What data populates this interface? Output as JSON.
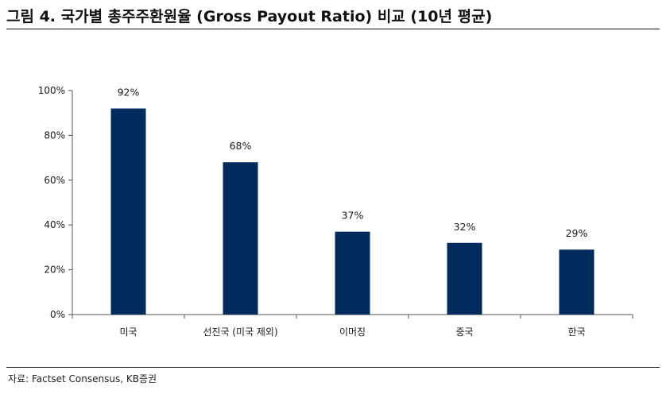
{
  "header": {
    "title": "그림 4. 국가별 총주주환원율 (Gross Payout Ratio) 비교 (10년 평균)"
  },
  "footer": {
    "source": "자료: Factset Consensus, KB증권"
  },
  "colors": {
    "bar": "#002b5c",
    "axis": "#555555"
  },
  "chart_data": {
    "type": "bar",
    "categories": [
      "미국",
      "선진국 (미국 제외)",
      "이머징",
      "중국",
      "한국"
    ],
    "values": [
      92,
      68,
      37,
      32,
      29
    ],
    "data_labels": [
      "92%",
      "68%",
      "37%",
      "32%",
      "29%"
    ],
    "ylim": [
      0,
      100
    ],
    "yticks": [
      0,
      20,
      40,
      60,
      80,
      100
    ],
    "ytick_labels": [
      "0%",
      "20%",
      "40%",
      "60%",
      "80%",
      "100%"
    ],
    "xlabel": "",
    "ylabel": "",
    "grid": false,
    "legend": "none"
  }
}
